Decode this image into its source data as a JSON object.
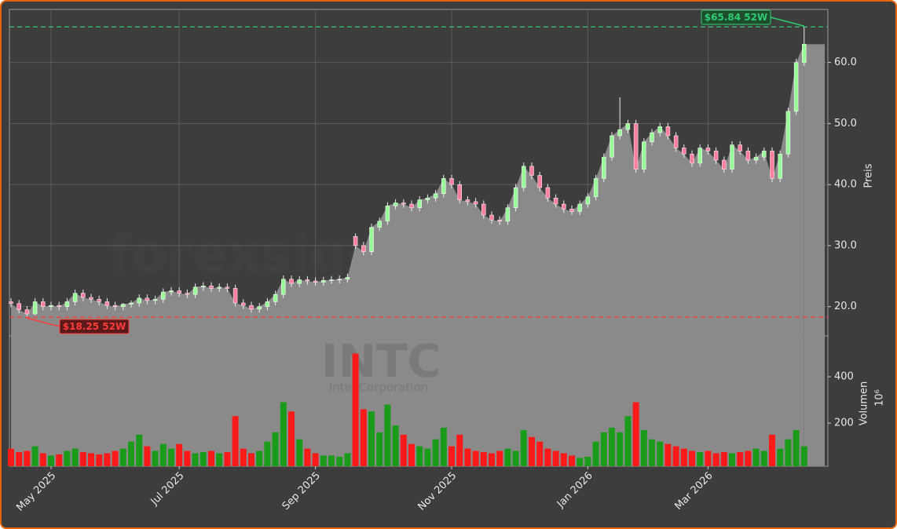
{
  "chart_data": {
    "type": "candlestick",
    "watermark": "forexsignale.trade",
    "ticker": "INTC",
    "company": "Intel Corporation",
    "y_label": "Preis",
    "volume_label": "Volumen",
    "volume_unit": "10⁶",
    "up_color": "#98fb98",
    "down_color": "#ff7fa0",
    "area_color": "#8a8a8a",
    "vol_up_color": "#1a9c1a",
    "vol_down_color": "#ff1a1a",
    "categories": [
      null,
      null,
      null,
      null,
      null,
      "May 2025",
      null,
      null,
      null,
      null,
      null,
      null,
      null,
      null,
      null,
      null,
      null,
      null,
      null,
      null,
      null,
      "Jul 2025",
      null,
      null,
      null,
      null,
      null,
      null,
      null,
      null,
      null,
      null,
      null,
      null,
      null,
      null,
      null,
      null,
      "Sep 2025",
      null,
      null,
      null,
      null,
      null,
      null,
      null,
      null,
      null,
      null,
      null,
      null,
      null,
      null,
      null,
      null,
      "Nov 2025",
      null,
      null,
      null,
      null,
      null,
      null,
      null,
      null,
      null,
      null,
      null,
      null,
      null,
      null,
      null,
      null,
      "Jan 2026",
      null,
      null,
      null,
      null,
      null,
      null,
      null,
      null,
      null,
      null,
      null,
      null,
      null,
      null,
      "Mar 2026",
      null,
      null,
      null,
      null,
      null,
      null,
      null,
      null,
      null,
      null,
      null,
      null
    ],
    "open": [
      20.8,
      20.5,
      19.5,
      18.8,
      20.8,
      20.0,
      20.2,
      20.0,
      20.8,
      22.2,
      21.5,
      21.2,
      20.8,
      20.2,
      20.0,
      20.4,
      20.6,
      21.4,
      21.0,
      21.2,
      22.4,
      22.6,
      22.2,
      22.0,
      23.2,
      23.4,
      23.0,
      23.2,
      23.0,
      20.6,
      20.2,
      19.6,
      20.0,
      20.8,
      22.0,
      24.5,
      23.8,
      24.4,
      24.2,
      24.0,
      24.3,
      24.4,
      24.5,
      31.5,
      30.0,
      29.0,
      33.0,
      34.0,
      36.5,
      37.0,
      36.8,
      36.2,
      37.5,
      37.8,
      38.5,
      41.0,
      40.0,
      37.5,
      37.2,
      36.8,
      35.0,
      34.2,
      34.0,
      36.2,
      39.5,
      43.0,
      41.5,
      39.5,
      37.8,
      36.8,
      36.0,
      35.6,
      36.8,
      38.0,
      41.0,
      44.5,
      48.0,
      49.0,
      50.0,
      42.5,
      47.0,
      48.5,
      49.5,
      48.0,
      46.0,
      45.0,
      43.5,
      46.0,
      45.5,
      44.0,
      42.5,
      46.5,
      45.5,
      44.0,
      44.5,
      45.5,
      41.0,
      45.0,
      52.0,
      60.0
    ],
    "high": [
      21.4,
      21.1,
      20.1,
      21.4,
      21.4,
      20.8,
      20.8,
      21.4,
      22.8,
      22.8,
      22.1,
      21.8,
      21.4,
      20.8,
      20.6,
      21.0,
      22.0,
      22.0,
      21.8,
      23.0,
      23.2,
      23.2,
      22.8,
      23.8,
      24.0,
      24.0,
      23.8,
      23.8,
      23.6,
      21.2,
      20.8,
      20.6,
      21.4,
      22.6,
      25.1,
      25.1,
      25.0,
      25.0,
      24.8,
      24.9,
      25.0,
      25.1,
      25.4,
      32.0,
      30.6,
      33.6,
      34.6,
      37.1,
      37.6,
      37.6,
      37.4,
      38.1,
      38.4,
      39.1,
      41.6,
      41.6,
      40.6,
      38.1,
      37.8,
      37.4,
      35.6,
      34.8,
      36.8,
      40.1,
      43.6,
      43.6,
      42.1,
      40.1,
      38.4,
      37.4,
      36.6,
      37.4,
      38.6,
      41.6,
      45.1,
      48.6,
      54.3,
      50.6,
      50.6,
      47.6,
      49.1,
      50.1,
      50.1,
      48.6,
      46.6,
      45.6,
      46.6,
      46.6,
      46.1,
      44.6,
      47.1,
      47.1,
      46.1,
      45.1,
      46.1,
      46.1,
      45.6,
      52.6,
      60.6,
      65.84
    ],
    "low": [
      19.9,
      18.9,
      18.25,
      18.6,
      19.4,
      19.4,
      19.4,
      19.4,
      20.2,
      20.9,
      20.6,
      20.2,
      19.6,
      19.4,
      19.4,
      19.8,
      20.0,
      20.4,
      20.4,
      20.6,
      21.8,
      21.6,
      21.4,
      21.4,
      22.6,
      22.4,
      22.4,
      22.4,
      20.0,
      19.6,
      19.0,
      19.0,
      19.4,
      20.2,
      21.4,
      23.2,
      23.2,
      23.6,
      23.4,
      23.4,
      23.7,
      23.8,
      23.9,
      29.4,
      28.4,
      28.4,
      32.4,
      33.4,
      35.9,
      36.2,
      35.6,
      35.6,
      36.9,
      37.2,
      37.9,
      39.4,
      36.9,
      36.6,
      36.2,
      34.4,
      33.6,
      33.4,
      33.4,
      35.6,
      38.9,
      40.9,
      38.9,
      37.2,
      36.2,
      35.4,
      35.0,
      35.0,
      36.2,
      37.4,
      40.4,
      43.9,
      47.4,
      48.4,
      41.9,
      41.9,
      46.4,
      47.9,
      47.4,
      45.4,
      44.4,
      42.9,
      42.9,
      44.9,
      43.4,
      41.9,
      41.9,
      44.9,
      43.4,
      43.4,
      43.9,
      40.4,
      40.4,
      44.4,
      51.4,
      59.4
    ],
    "close": [
      20.5,
      19.5,
      18.8,
      20.8,
      20.0,
      20.2,
      20.0,
      20.8,
      22.2,
      21.5,
      21.2,
      20.8,
      20.2,
      20.0,
      20.4,
      20.6,
      21.4,
      21.0,
      21.2,
      22.4,
      22.6,
      22.2,
      22.0,
      23.2,
      23.4,
      23.0,
      23.2,
      23.0,
      20.6,
      20.2,
      19.6,
      20.0,
      20.8,
      22.0,
      24.5,
      23.8,
      24.4,
      24.2,
      24.0,
      24.3,
      24.4,
      24.5,
      24.8,
      30.0,
      29.0,
      33.0,
      34.0,
      36.5,
      37.0,
      36.8,
      36.2,
      37.5,
      37.8,
      38.5,
      41.0,
      40.0,
      37.5,
      37.2,
      36.8,
      35.0,
      34.2,
      34.0,
      36.2,
      39.5,
      43.0,
      41.5,
      39.5,
      37.8,
      36.8,
      36.0,
      35.6,
      36.8,
      38.0,
      41.0,
      44.5,
      48.0,
      49.0,
      50.0,
      42.5,
      47.0,
      48.5,
      49.5,
      48.0,
      46.0,
      45.0,
      43.5,
      46.0,
      45.5,
      44.0,
      42.5,
      46.5,
      45.5,
      44.0,
      44.5,
      45.5,
      41.0,
      45.0,
      52.0,
      60.0,
      63.0
    ],
    "volume": [
      90,
      75,
      80,
      100,
      70,
      60,
      65,
      80,
      90,
      75,
      70,
      65,
      70,
      80,
      90,
      120,
      150,
      100,
      80,
      110,
      90,
      110,
      80,
      70,
      75,
      80,
      70,
      75,
      230,
      90,
      70,
      80,
      120,
      160,
      290,
      250,
      130,
      90,
      70,
      60,
      60,
      55,
      70,
      500,
      260,
      250,
      160,
      280,
      190,
      150,
      110,
      100,
      90,
      130,
      180,
      100,
      150,
      90,
      80,
      75,
      70,
      80,
      90,
      80,
      170,
      140,
      120,
      90,
      80,
      70,
      60,
      50,
      55,
      120,
      160,
      180,
      160,
      230,
      290,
      170,
      130,
      120,
      110,
      100,
      90,
      80,
      75,
      80,
      70,
      75,
      70,
      75,
      80,
      90,
      80,
      150,
      90,
      130,
      170,
      100
    ],
    "ylim": [
      15.2,
      68.7
    ],
    "yticks": [
      {
        "value": 20,
        "label": "20.0"
      },
      {
        "value": 30,
        "label": "30.0"
      },
      {
        "value": 40,
        "label": "40.0"
      },
      {
        "value": 50,
        "label": "50.0"
      },
      {
        "value": 60,
        "label": "60.0"
      }
    ],
    "volume_ylim": [
      14,
      576
    ],
    "volume_yticks": [
      200,
      400
    ],
    "hlines": [
      {
        "value": 65.84,
        "label": "$65.84 52W",
        "color": "#2ecc71",
        "target": 99
      },
      {
        "value": 18.25,
        "label": "$18.25 52W",
        "color": "#ff3b3b",
        "target": 2
      }
    ],
    "grid": true
  }
}
